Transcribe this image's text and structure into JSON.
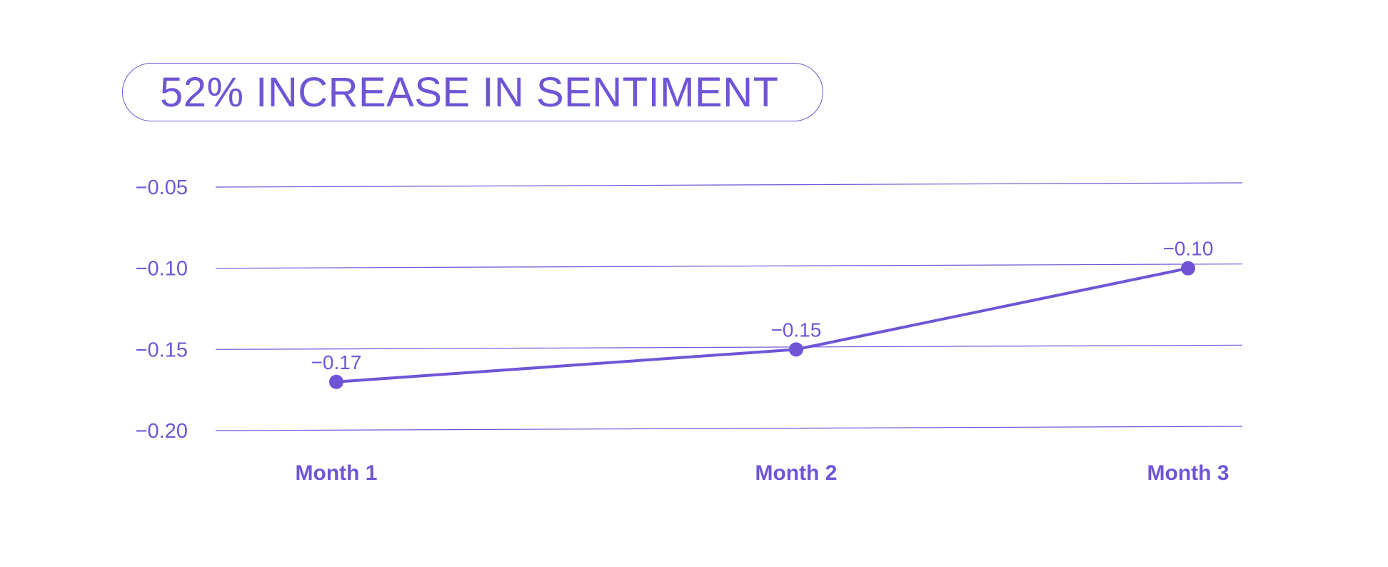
{
  "chart_data": {
    "type": "line",
    "title": "52% INCREASE IN SENTIMENT",
    "xlabel": "",
    "ylabel": "",
    "categories": [
      "Month 1",
      "Month 2",
      "Month 3"
    ],
    "series": [
      {
        "values": [
          -0.17,
          -0.15,
          -0.1
        ],
        "data_labels": [
          "-0.17",
          "-0.15",
          "-0.10"
        ]
      }
    ],
    "y_ticks": [
      -0.05,
      -0.1,
      -0.15,
      -0.2
    ],
    "y_tick_labels": [
      "-0.05",
      "-0.10",
      "-0.15",
      "-0.20"
    ],
    "ylim": [
      -0.2,
      -0.05
    ],
    "grid": true,
    "legend": "none",
    "colors": {
      "accent": "#6f55d6"
    }
  }
}
